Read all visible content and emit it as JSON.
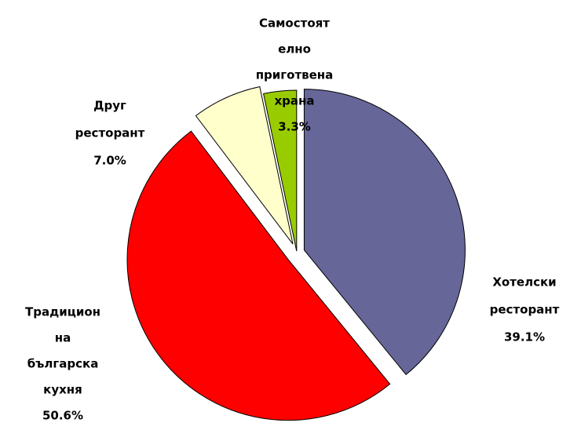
{
  "chart_data": {
    "type": "pie",
    "categories": [
      [
        "Хотелски",
        "ресторант"
      ],
      [
        "Традицион",
        "на",
        "българска",
        "кухня"
      ],
      [
        "Друг",
        "ресторант"
      ],
      [
        "Самостоят",
        "елно",
        "приготвена",
        "храна"
      ]
    ],
    "values": [
      39.1,
      50.6,
      7.0,
      3.3
    ],
    "value_labels": [
      "39.1%",
      "50.6%",
      "7.0%",
      "3.3%"
    ],
    "colors": [
      "#666699",
      "#ff0000",
      "#ffffcc",
      "#99cc00"
    ]
  }
}
